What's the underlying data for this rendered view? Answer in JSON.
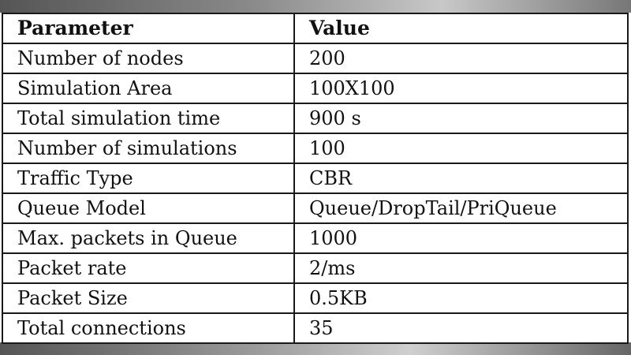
{
  "table": {
    "headers": [
      "Parameter",
      "Value"
    ],
    "rows": [
      [
        "Number of nodes",
        "200"
      ],
      [
        "Simulation Area",
        "100X100"
      ],
      [
        "Total simulation time",
        "900 s"
      ],
      [
        "Number of simulations",
        "100"
      ],
      [
        "Traffic Type",
        "CBR"
      ],
      [
        "Queue Model",
        "Queue/DropTail/PriQueue"
      ],
      [
        "Max. packets in Queue",
        "1000"
      ],
      [
        "Packet rate",
        "2/ms"
      ],
      [
        "Packet Size",
        "0.5KB"
      ],
      [
        "Total connections",
        "35"
      ]
    ]
  }
}
